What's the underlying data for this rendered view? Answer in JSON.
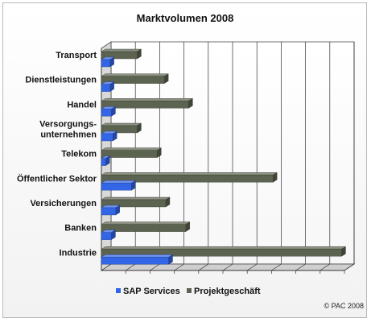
{
  "chart_data": {
    "type": "bar",
    "orientation": "horizontal",
    "title": "Marktvolumen 2008",
    "categories": [
      "Transport",
      "Dienstleistungen",
      "Handel",
      "Versorgungs-\nunternehmen",
      "Telekom",
      "Öffentlicher Sektor",
      "Versicherungen",
      "Banken",
      "Industrie"
    ],
    "series": [
      {
        "name": "SAP Services",
        "color": "#3366e6",
        "values": [
          0.6,
          0.6,
          0.7,
          0.8,
          0.3,
          2.1,
          1.0,
          0.7,
          4.7
        ]
      },
      {
        "name": "Projektgeschäft",
        "color": "#5c6350",
        "values": [
          2.5,
          4.4,
          6.1,
          2.5,
          3.9,
          12.0,
          4.5,
          5.9,
          16.8
        ]
      }
    ],
    "xlim": [
      0,
      17
    ],
    "grid": true,
    "legend_position": "bottom",
    "three_d": true
  },
  "footer": {
    "source": "© PAC 2008"
  }
}
